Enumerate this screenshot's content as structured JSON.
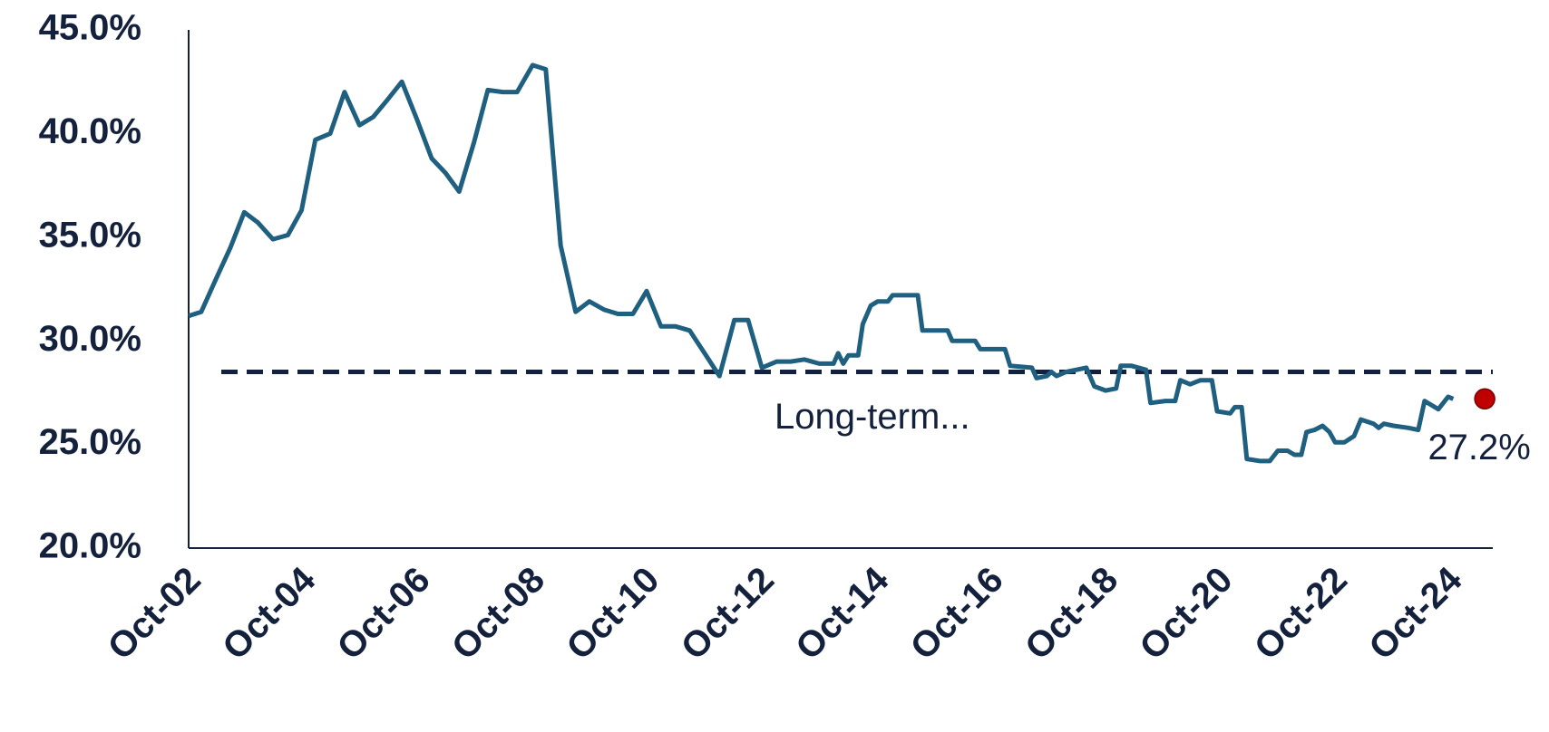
{
  "chart_data": {
    "type": "line",
    "color": "#1f5f80",
    "x": [
      2002.75,
      2002.97,
      2003.23,
      2003.48,
      2003.72,
      2003.96,
      2004.22,
      2004.48,
      2004.72,
      2004.96,
      2005.22,
      2005.47,
      2005.73,
      2005.97,
      2006.21,
      2006.47,
      2006.73,
      2006.99,
      2007.23,
      2007.47,
      2007.73,
      2007.97,
      2008.23,
      2008.48,
      2008.75,
      2008.98,
      2009.24,
      2009.5,
      2009.74,
      2010.0,
      2010.24,
      2010.5,
      2010.74,
      2010.99,
      2011.24,
      2011.49,
      2011.75,
      2012.01,
      2012.27,
      2012.51,
      2012.75,
      2013.01,
      2013.25,
      2013.49,
      2013.75,
      2014.0,
      2014.08,
      2014.17,
      2014.26,
      2014.43,
      2014.51,
      2014.65,
      2014.77,
      2014.95,
      2015.03,
      2015.47,
      2015.55,
      2015.99,
      2016.07,
      2016.47,
      2016.56,
      2016.99,
      2017.08,
      2017.46,
      2017.54,
      2017.72,
      2017.8,
      2017.89,
      2018.06,
      2018.41,
      2018.55,
      2018.75,
      2018.93,
      2019.01,
      2019.19,
      2019.45,
      2019.53,
      2019.79,
      2019.96,
      2020.05,
      2020.22,
      2020.4,
      2020.6,
      2020.69,
      2020.92,
      2021.0,
      2021.12,
      2021.21,
      2021.44,
      2021.61,
      2021.75,
      2021.92,
      2022.04,
      2022.16,
      2022.25,
      2022.39,
      2022.53,
      2022.65,
      2022.75,
      2022.91,
      2023.08,
      2023.2,
      2023.42,
      2023.51,
      2023.6,
      2023.77,
      2024.03,
      2024.2,
      2024.31,
      2024.55,
      2024.72,
      2024.81
    ],
    "values": [
      31.2,
      31.4,
      33.0,
      34.5,
      36.2,
      35.7,
      34.9,
      35.1,
      36.3,
      39.7,
      40.0,
      42.0,
      40.4,
      40.8,
      41.6,
      42.5,
      40.7,
      38.8,
      38.1,
      37.2,
      39.6,
      42.1,
      42.0,
      42.0,
      43.3,
      43.1,
      34.6,
      31.4,
      31.9,
      31.5,
      31.3,
      31.3,
      32.4,
      30.7,
      30.7,
      30.5,
      29.4,
      28.3,
      31.0,
      31.0,
      28.7,
      29.0,
      29.0,
      29.1,
      28.9,
      28.9,
      29.4,
      28.9,
      29.3,
      29.3,
      30.8,
      31.7,
      31.9,
      31.9,
      32.2,
      32.2,
      30.5,
      30.5,
      30.0,
      30.0,
      29.6,
      29.6,
      28.8,
      28.7,
      28.2,
      28.3,
      28.5,
      28.3,
      28.5,
      28.7,
      27.8,
      27.6,
      27.7,
      28.8,
      28.8,
      28.6,
      27.0,
      27.1,
      27.1,
      28.1,
      27.9,
      28.1,
      28.1,
      26.6,
      26.5,
      26.8,
      26.8,
      24.3,
      24.2,
      24.2,
      24.7,
      24.7,
      24.5,
      24.5,
      25.6,
      25.7,
      25.9,
      25.6,
      25.1,
      25.1,
      25.4,
      26.2,
      26.0,
      25.8,
      26.0,
      25.9,
      25.8,
      25.7,
      27.1,
      26.7,
      27.3,
      27.2
    ],
    "xlim": [
      2002.75,
      2025.5
    ],
    "xticks": [
      {
        "value": 2002.75,
        "label": "Oct-02"
      },
      {
        "value": 2004.75,
        "label": "Oct-04"
      },
      {
        "value": 2006.75,
        "label": "Oct-06"
      },
      {
        "value": 2008.75,
        "label": "Oct-08"
      },
      {
        "value": 2010.75,
        "label": "Oct-10"
      },
      {
        "value": 2012.75,
        "label": "Oct-12"
      },
      {
        "value": 2014.75,
        "label": "Oct-14"
      },
      {
        "value": 2016.75,
        "label": "Oct-16"
      },
      {
        "value": 2018.75,
        "label": "Oct-18"
      },
      {
        "value": 2020.75,
        "label": "Oct-20"
      },
      {
        "value": 2022.75,
        "label": "Oct-22"
      },
      {
        "value": 2024.75,
        "label": "Oct-24"
      }
    ],
    "ylim": [
      20,
      45
    ],
    "yticks": [
      {
        "value": 20,
        "label": "20.0%"
      },
      {
        "value": 25,
        "label": "25.0%"
      },
      {
        "value": 30,
        "label": "30.0%"
      },
      {
        "value": 35,
        "label": "35.0%"
      },
      {
        "value": 40,
        "label": "40.0%"
      },
      {
        "value": 45,
        "label": "45.0%"
      }
    ],
    "grid": false,
    "reference_line": {
      "value": 28.5,
      "label": "Long-term...",
      "color": "#14213d"
    },
    "last_point": {
      "x": 2025.36,
      "value": 27.2,
      "label": "27.2%",
      "color": "#c00000"
    }
  }
}
